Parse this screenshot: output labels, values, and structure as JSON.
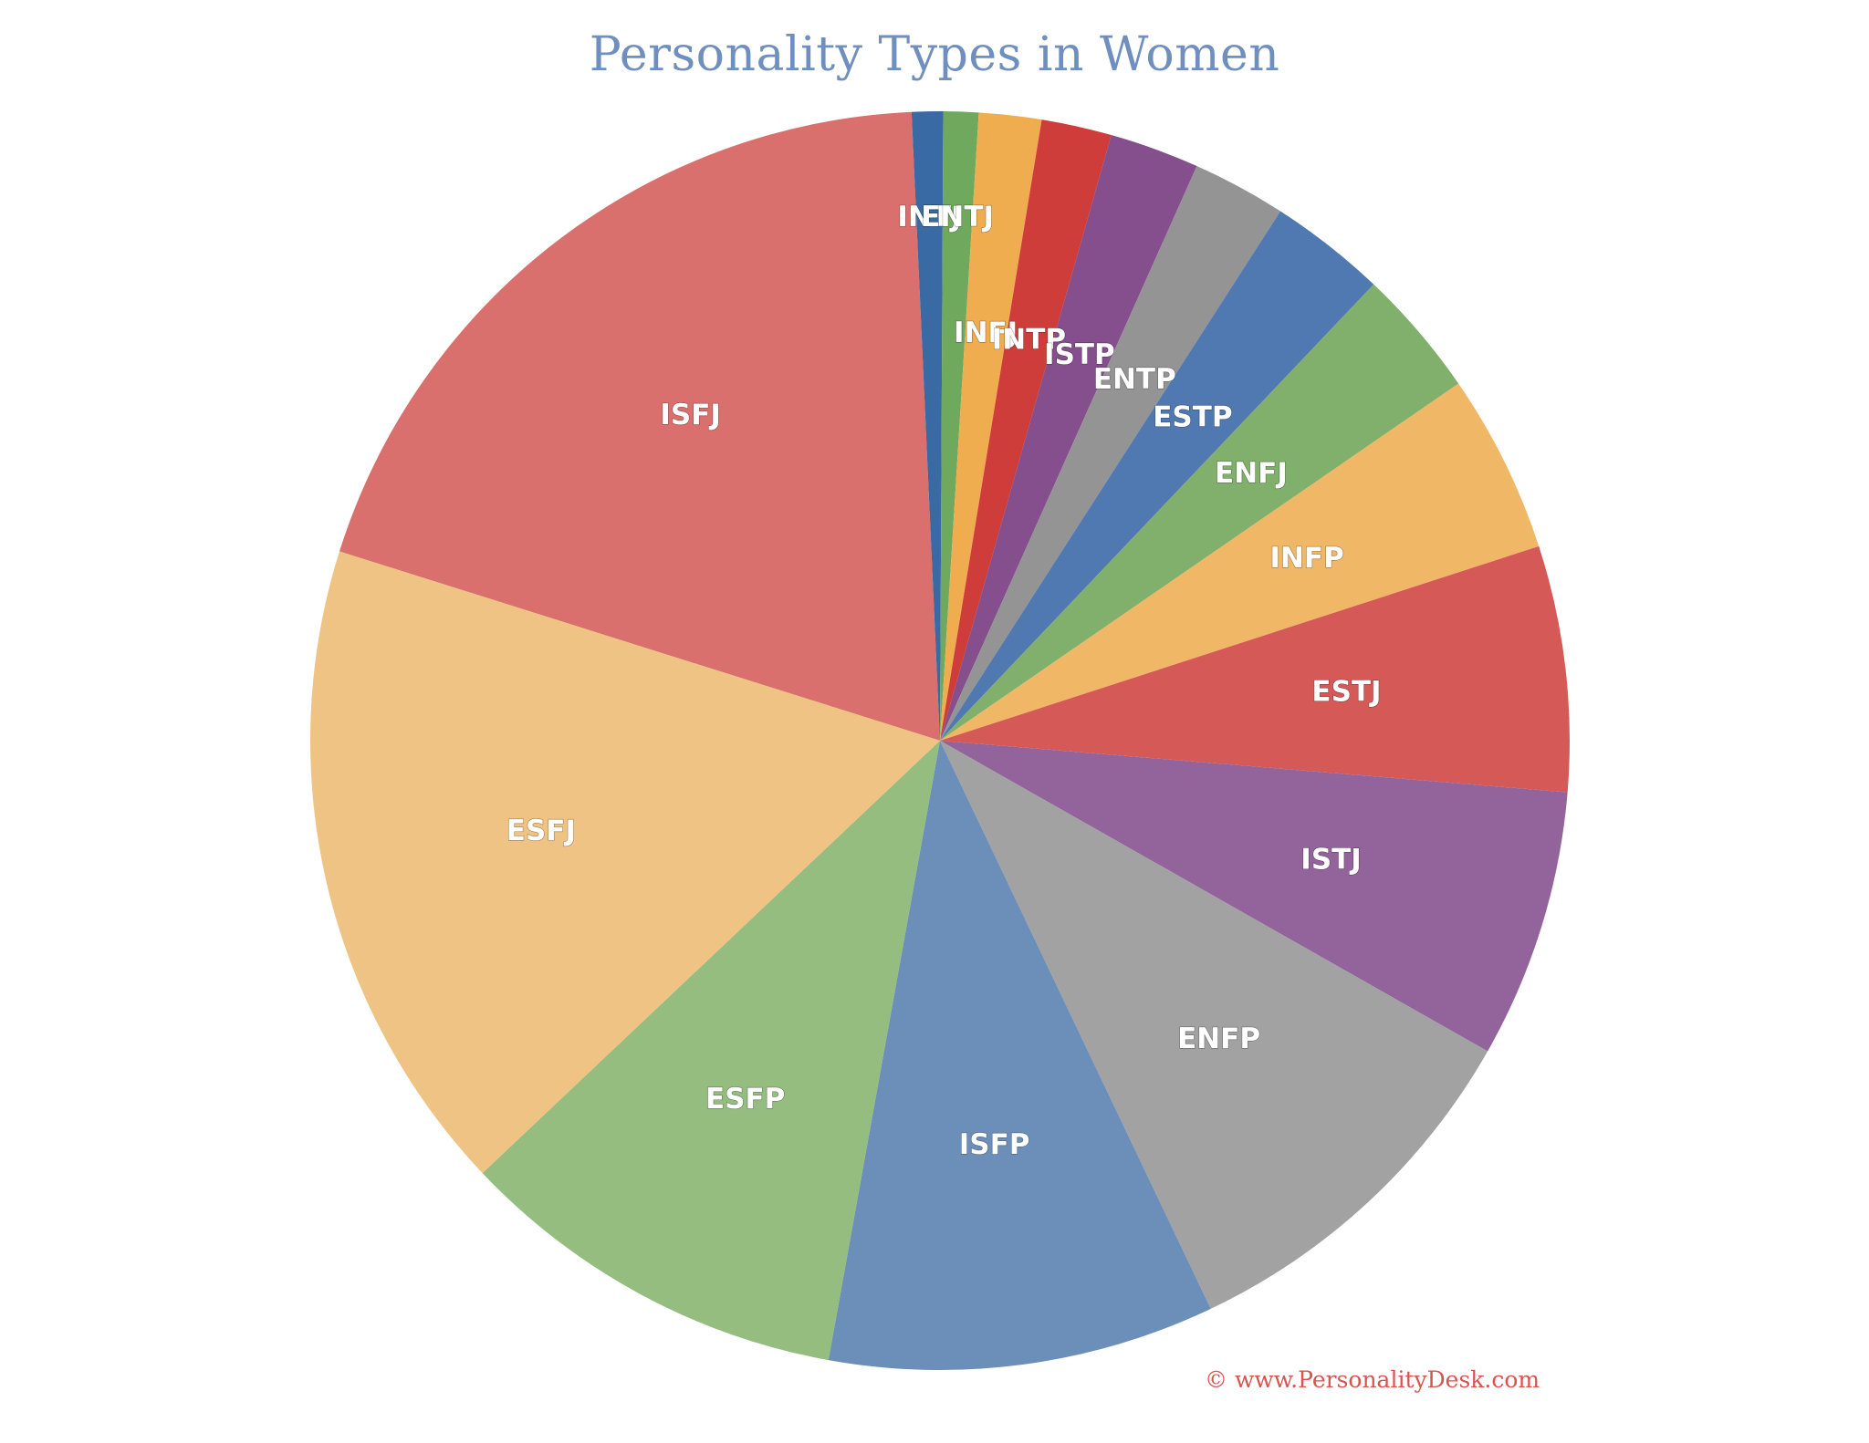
{
  "chart_data": {
    "type": "pie",
    "title": "Personality Types in Women",
    "slices": [
      {
        "label": "ISFJ",
        "value": 19.4,
        "color": "#da706e"
      },
      {
        "label": "INTJ",
        "value": 0.8,
        "color": "#3a6aa4"
      },
      {
        "label": "ENTJ",
        "value": 0.9,
        "color": "#6fa95e"
      },
      {
        "label": "INFJ",
        "value": 1.6,
        "color": "#efad4f"
      },
      {
        "label": "INTP",
        "value": 1.8,
        "color": "#cf3d3a"
      },
      {
        "label": "ISTP",
        "value": 2.3,
        "color": "#854e8d"
      },
      {
        "label": "ENTP",
        "value": 2.4,
        "color": "#949494"
      },
      {
        "label": "ESTP",
        "value": 3.0,
        "color": "#5079b1"
      },
      {
        "label": "ENFJ",
        "value": 3.3,
        "color": "#80b06b"
      },
      {
        "label": "INFP",
        "value": 4.6,
        "color": "#f0b767"
      },
      {
        "label": "ESTJ",
        "value": 6.3,
        "color": "#d55a57"
      },
      {
        "label": "ISTJ",
        "value": 6.9,
        "color": "#93649c"
      },
      {
        "label": "ENFP",
        "value": 9.7,
        "color": "#a2a2a2"
      },
      {
        "label": "ISFP",
        "value": 9.9,
        "color": "#6c8fba"
      },
      {
        "label": "ESFP",
        "value": 10.1,
        "color": "#95bd80"
      },
      {
        "label": "ESFJ",
        "value": 16.9,
        "color": "#efc383"
      }
    ]
  },
  "footer": {
    "copyright": "© www.PersonalityDesk.com"
  }
}
